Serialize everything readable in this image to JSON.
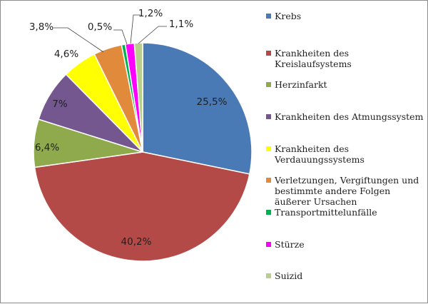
{
  "chart_data": {
    "type": "pie",
    "title": "",
    "start_angle_deg": 0,
    "direction": "clockwise",
    "series": [
      {
        "name": "Krebs",
        "value": 25.5,
        "label": "25,5%",
        "color": "#4a7ab5"
      },
      {
        "name": "Krankheiten des Kreislaufsystems",
        "value": 40.2,
        "label": "40,2%",
        "color": "#b44a48"
      },
      {
        "name": "Herzinfarkt",
        "value": 6.4,
        "label": "6,4%",
        "color": "#8eaa4c"
      },
      {
        "name": "Krankheiten des Atmungssystem",
        "value": 7.0,
        "label": "7%",
        "color": "#74578e"
      },
      {
        "name": "Krankheiten des Verdauungssystems",
        "value": 4.6,
        "label": "4,6%",
        "color": "#ffff00"
      },
      {
        "name": "Verletzungen, Vergiftungen und bestimmte andere Folgen äußerer Ursachen",
        "value": 3.8,
        "label": "3,8%",
        "color": "#e28a3c"
      },
      {
        "name": "Transportmittelunfälle",
        "value": 0.5,
        "label": "0,5%",
        "color": "#00b050"
      },
      {
        "name": "Stürze",
        "value": 1.2,
        "label": "1,2%",
        "color": "#ff00ff"
      },
      {
        "name": "Suizid",
        "value": 1.1,
        "label": "1,1%",
        "color": "#b8cf8e"
      }
    ],
    "legend_position": "right"
  }
}
